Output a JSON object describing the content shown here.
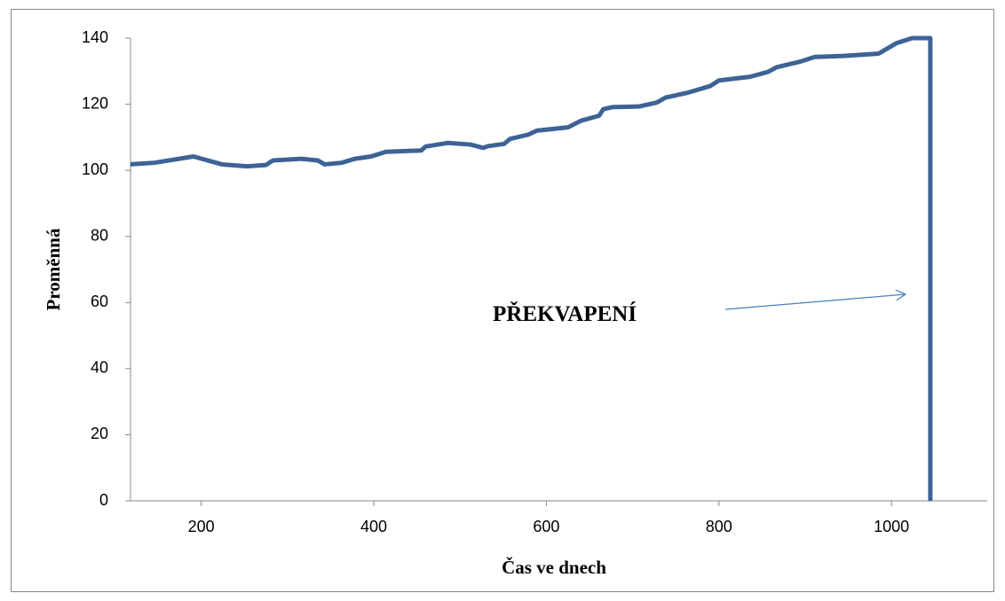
{
  "chart_data": {
    "type": "line",
    "x_label": "Čas ve dnech",
    "y_label": "Proměnná",
    "annotation": "PŘEKVAPENÍ",
    "series": [
      {
        "name": "Proměnná",
        "color": "#3d6396",
        "x": [
          118,
          146,
          191,
          224,
          253,
          275,
          283,
          316,
          335,
          343,
          363,
          378,
          397,
          414,
          455,
          460,
          486,
          512,
          527,
          532,
          551,
          558,
          579,
          589,
          625,
          640,
          661,
          666,
          676,
          707,
          728,
          738,
          764,
          790,
          800,
          836,
          857,
          867,
          893,
          911,
          944,
          985,
          1006,
          1024,
          1045,
          1045
        ],
        "values": [
          101.8,
          102.3,
          104.2,
          101.8,
          101.2,
          101.6,
          103,
          103.5,
          103,
          101.8,
          102.3,
          103.5,
          104.2,
          105.6,
          106,
          107.2,
          108.3,
          107.8,
          106.8,
          107.3,
          108,
          109.5,
          110.8,
          112,
          113,
          115,
          116.5,
          118.5,
          119.1,
          119.3,
          120.5,
          122,
          123.5,
          125.5,
          127.2,
          128.3,
          129.8,
          131.2,
          132.8,
          134.3,
          134.6,
          135.3,
          138.5,
          140,
          140,
          0
        ]
      }
    ],
    "xlim": [
      118,
      1111
    ],
    "xticks": [
      200,
      400,
      600,
      800,
      1000
    ],
    "ylim": [
      0,
      140
    ],
    "yticks": [
      0,
      20,
      40,
      60,
      80,
      100,
      120,
      140
    ]
  }
}
